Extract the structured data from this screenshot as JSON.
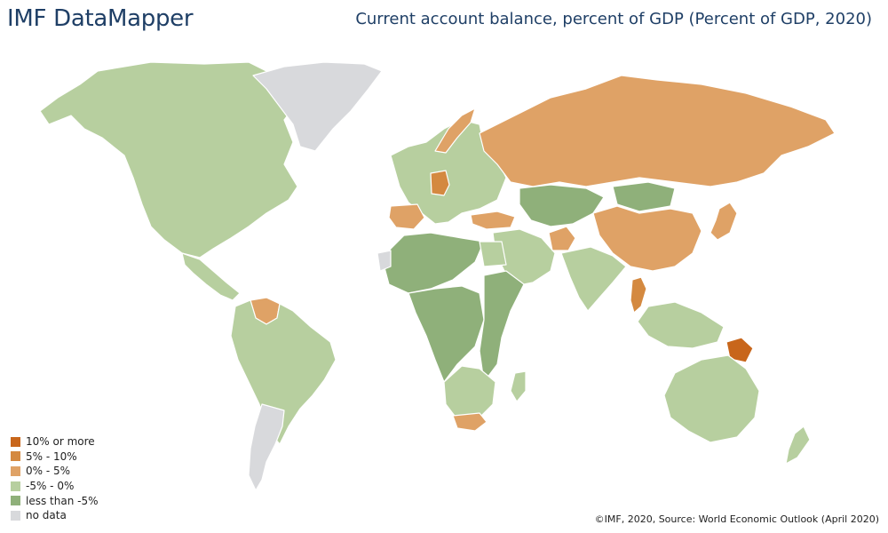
{
  "header": {
    "brand": "IMF DataMapper",
    "title": "Current account balance, percent of GDP (Percent of GDP, 2020)"
  },
  "legend": {
    "items": [
      {
        "label": "10% or more",
        "color": "#c8661b"
      },
      {
        "label": "5% - 10%",
        "color": "#d48940"
      },
      {
        "label": "0% - 5%",
        "color": "#dfa266"
      },
      {
        "label": "-5% - 0%",
        "color": "#b7cf9f"
      },
      {
        "label": "less than -5%",
        "color": "#8fb07a"
      },
      {
        "label": "no data",
        "color": "#d8d9dc"
      }
    ]
  },
  "footer": {
    "source": "©IMF, 2020, Source: World Economic Outlook (April 2020)"
  },
  "map": {
    "regions": [
      {
        "name": "North America",
        "category": "-5% - 0%"
      },
      {
        "name": "Greenland",
        "category": "no data"
      },
      {
        "name": "Central America",
        "category": "-5% - 0%"
      },
      {
        "name": "Venezuela",
        "category": "0% - 5%"
      },
      {
        "name": "South America",
        "category": "-5% - 0%"
      },
      {
        "name": "Argentina",
        "category": "no data"
      },
      {
        "name": "Europe",
        "category": "-5% - 0%"
      },
      {
        "name": "Germany",
        "category": "5% - 10%"
      },
      {
        "name": "Iberia",
        "category": "0% - 5%"
      },
      {
        "name": "Norway",
        "category": "0% - 5%"
      },
      {
        "name": "Russia",
        "category": "0% - 5%"
      },
      {
        "name": "Turkey",
        "category": "0% - 5%"
      },
      {
        "name": "Middle East",
        "category": "-5% - 0%"
      },
      {
        "name": "Afghanistan",
        "category": "0% - 5%"
      },
      {
        "name": "Central Asia",
        "category": "less than -5%"
      },
      {
        "name": "Mongolia",
        "category": "less than -5%"
      },
      {
        "name": "China",
        "category": "0% - 5%"
      },
      {
        "name": "Japan",
        "category": "0% - 5%"
      },
      {
        "name": "India",
        "category": "-5% - 0%"
      },
      {
        "name": "Thailand",
        "category": "5% - 10%"
      },
      {
        "name": "Southeast Asia",
        "category": "-5% - 0%"
      },
      {
        "name": "Papua New Guinea",
        "category": "10% or more"
      },
      {
        "name": "Australia",
        "category": "-5% - 0%"
      },
      {
        "name": "New Zealand",
        "category": "-5% - 0%"
      },
      {
        "name": "North Africa",
        "category": "less than -5%"
      },
      {
        "name": "Egypt",
        "category": "-5% - 0%"
      },
      {
        "name": "Western Sahara",
        "category": "no data"
      },
      {
        "name": "Central Africa",
        "category": "less than -5%"
      },
      {
        "name": "East Africa",
        "category": "less than -5%"
      },
      {
        "name": "Southern Africa",
        "category": "-5% - 0%"
      },
      {
        "name": "South Africa",
        "category": "0% - 5%"
      },
      {
        "name": "Madagascar",
        "category": "-5% - 0%"
      }
    ]
  }
}
